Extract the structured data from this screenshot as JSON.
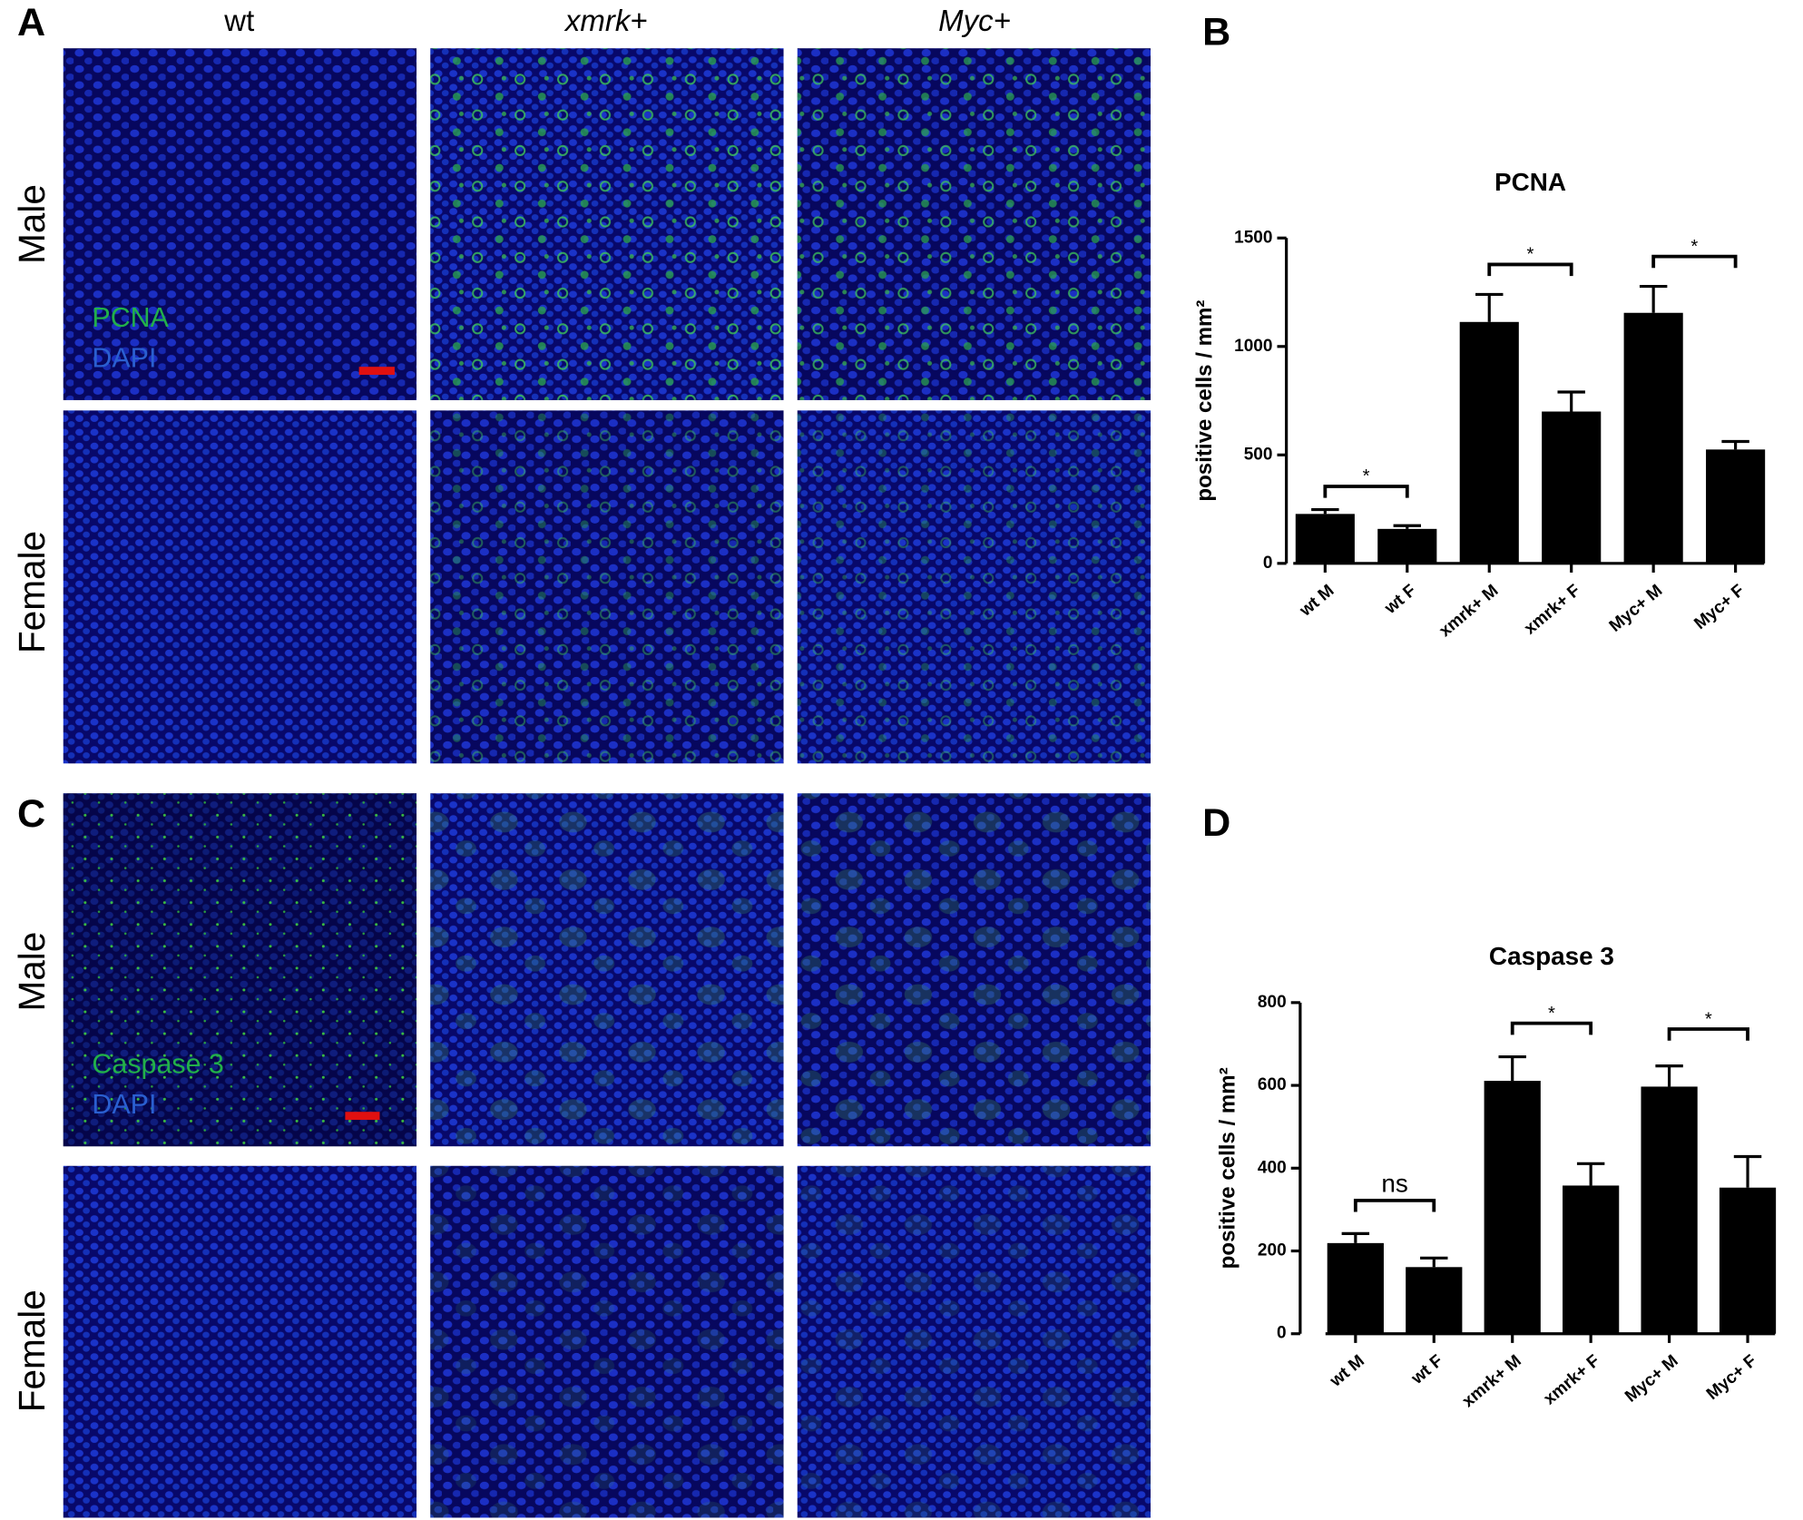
{
  "figure": {
    "panel_labels": [
      "A",
      "B",
      "C",
      "D"
    ],
    "column_headers": [
      "wt",
      "xmrk+",
      "Myc+"
    ],
    "row_labels": [
      "Male",
      "Female",
      "Male",
      "Female"
    ],
    "stain_labels": [
      [
        "PCNA",
        "DAPI"
      ],
      [
        "Caspase 3",
        "DAPI"
      ]
    ]
  },
  "chart_data": [
    {
      "type": "bar",
      "title": "PCNA",
      "y_label": "positive cells / mm²",
      "categories": [
        "wt M",
        "wt F",
        "xmrk+ M",
        "xmrk+ F",
        "Myc+ M",
        "Myc+ F"
      ],
      "values": [
        228,
        159,
        1113,
        700,
        1155,
        525
      ],
      "errors": [
        20,
        15,
        127,
        90,
        122,
        37
      ],
      "color": "#000000",
      "ylim": [
        0,
        1500
      ],
      "yticks": [
        0,
        500,
        1000,
        1500
      ],
      "annotations": [
        {
          "label": "*",
          "categories": [
            "wt M",
            "wt F"
          ],
          "y": 355
        },
        {
          "label": "*",
          "categories": [
            "xmrk+ M",
            "xmrk+ F"
          ],
          "y": 1378
        },
        {
          "label": "*",
          "categories": [
            "Myc+ M",
            "Myc+ F"
          ],
          "y": 1415
        }
      ]
    },
    {
      "type": "bar",
      "title": "Caspase 3",
      "y_label": "positive cells / mm²",
      "categories": [
        "wt M",
        "wt F",
        "xmrk+ M",
        "xmrk+ F",
        "Myc+ M",
        "Myc+ F"
      ],
      "values": [
        219,
        161,
        611,
        358,
        597,
        353
      ],
      "errors": [
        23,
        22,
        58,
        53,
        50,
        75
      ],
      "color": "#000000",
      "ylim": [
        0,
        800
      ],
      "yticks": [
        0,
        200,
        400,
        600,
        800
      ],
      "annotations": [
        {
          "label": "ns",
          "categories": [
            "wt M",
            "wt F"
          ],
          "y": 322
        },
        {
          "label": "*",
          "categories": [
            "xmrk+ M",
            "xmrk+ F"
          ],
          "y": 750
        },
        {
          "label": "*",
          "categories": [
            "Myc+ M",
            "Myc+ F"
          ],
          "y": 736
        }
      ]
    }
  ]
}
